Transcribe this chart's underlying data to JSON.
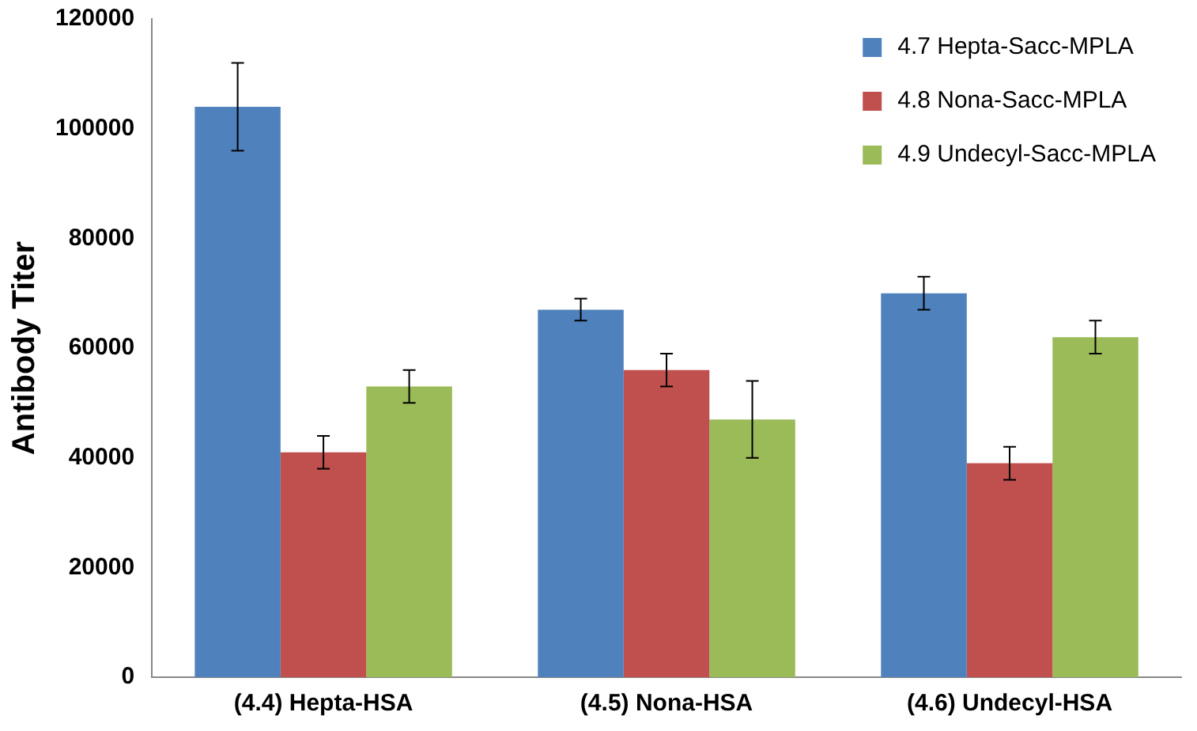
{
  "chart_data": {
    "type": "bar",
    "ylabel": "Antibody Titer",
    "categories": [
      "(4.4) Hepta-HSA",
      "(4.5) Nona-HSA",
      "(4.6) Undecyl-HSA"
    ],
    "series": [
      {
        "name": "4.7 Hepta-Sacc-MPLA",
        "color": "#4f81bd",
        "values": [
          104000,
          67000,
          70000
        ],
        "errors": [
          8000,
          2000,
          3000
        ]
      },
      {
        "name": "4.8 Nona-Sacc-MPLA",
        "color": "#c0504d",
        "values": [
          41000,
          56000,
          39000
        ],
        "errors": [
          3000,
          3000,
          3000
        ]
      },
      {
        "name": "4.9 Undecyl-Sacc-MPLA",
        "color": "#9bbb59",
        "values": [
          53000,
          47000,
          62000
        ],
        "errors": [
          3000,
          7000,
          3000
        ]
      }
    ],
    "ylim": [
      0,
      120000
    ],
    "yticks": [
      0,
      20000,
      40000,
      60000,
      80000,
      100000,
      120000
    ],
    "grid": false,
    "legend": "top right"
  }
}
